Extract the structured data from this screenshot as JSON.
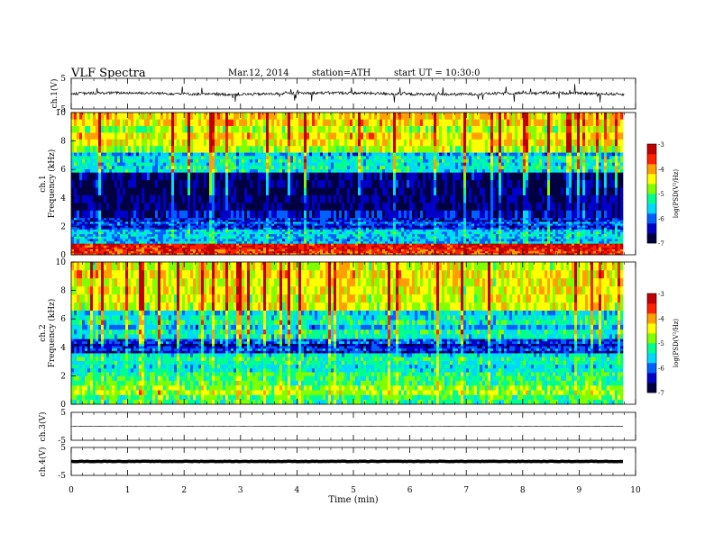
{
  "header": {
    "title": "VLF Spectra",
    "date": "Mar.12, 2014",
    "station": "station=ATH",
    "start": "start UT =  10:30:0"
  },
  "colors": {
    "colormap": [
      "#000040",
      "#0000c8",
      "#0060ff",
      "#00d8ff",
      "#00ff90",
      "#80ff00",
      "#ffff00",
      "#ffa000",
      "#ff2000",
      "#c00000"
    ],
    "trace": "#000000"
  },
  "chart_data": [
    {
      "type": "line",
      "id": "ch1-waveform",
      "ylabel": "ch.1(V)",
      "ylim": [
        -5,
        5
      ],
      "yticks": [
        "5",
        "-5"
      ],
      "description_values": "noisy waveform centered near 0 V, spikes up to about +3 V and -3 V"
    },
    {
      "type": "heatmap",
      "id": "ch1-spectrogram",
      "ylabel": "ch.1 Frequency (kHz)",
      "ylim": [
        0,
        10
      ],
      "yticks": [
        "0",
        "2",
        "4",
        "6",
        "8",
        "10"
      ],
      "colorbar": {
        "label": "log(PSD(V²/Hz)",
        "range": [
          -7,
          -3
        ],
        "ticks": [
          "-3",
          "-4",
          "-5",
          "-6",
          "-7"
        ]
      },
      "bands_khz": [
        {
          "from": 0.0,
          "to": 0.8,
          "level": -3.6
        },
        {
          "from": 0.8,
          "to": 1.8,
          "level": -5.8
        },
        {
          "from": 1.8,
          "to": 2.6,
          "level": -6.2
        },
        {
          "from": 2.6,
          "to": 5.8,
          "level": -6.6
        },
        {
          "from": 5.8,
          "to": 7.2,
          "level": -5.6
        },
        {
          "from": 7.2,
          "to": 10.0,
          "level": -4.5
        }
      ]
    },
    {
      "type": "heatmap",
      "id": "ch2-spectrogram",
      "ylabel": "ch.2 Frequency (kHz)",
      "ylim": [
        0,
        10
      ],
      "yticks": [
        "0",
        "2",
        "4",
        "6",
        "8",
        "10"
      ],
      "colorbar": {
        "label": "log(PSD(V²/Hz)",
        "range": [
          -7,
          -3
        ],
        "ticks": [
          "-3",
          "-4",
          "-5",
          "-6",
          "-7"
        ]
      },
      "bands_khz": [
        {
          "from": 0.0,
          "to": 2.0,
          "level": -4.9
        },
        {
          "from": 2.0,
          "to": 3.6,
          "level": -5.3
        },
        {
          "from": 3.6,
          "to": 4.6,
          "level": -6.3
        },
        {
          "from": 4.6,
          "to": 6.6,
          "level": -5.5
        },
        {
          "from": 6.6,
          "to": 10.0,
          "level": -4.5
        }
      ]
    },
    {
      "type": "line",
      "id": "ch3-waveform",
      "ylabel": "ch.3(V)",
      "ylim": [
        -5,
        5
      ],
      "yticks": [
        "5",
        "-5"
      ],
      "level": 0
    },
    {
      "type": "line",
      "id": "ch4-waveform",
      "ylabel": "ch.4(V)",
      "ylim": [
        -5,
        5
      ],
      "yticks": [
        "5",
        "-5"
      ],
      "level": 0
    },
    {
      "type": "axis",
      "id": "time-axis",
      "xlabel": "Time  (min)",
      "xlim": [
        0,
        10
      ],
      "xticks": [
        "0",
        "1",
        "2",
        "3",
        "4",
        "5",
        "6",
        "7",
        "8",
        "9",
        "10"
      ],
      "data_end_min": 9.8
    }
  ]
}
